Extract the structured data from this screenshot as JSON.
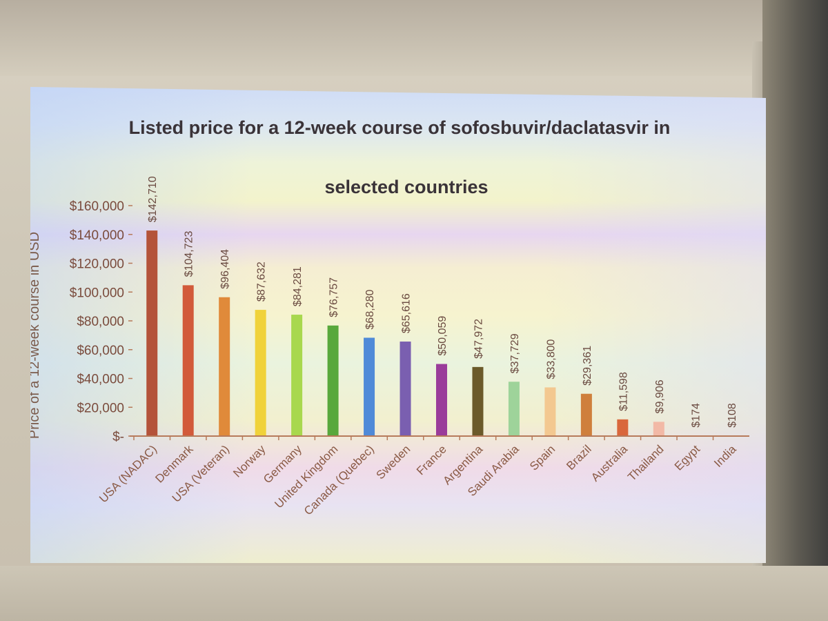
{
  "chart_data": {
    "type": "bar",
    "title": "Listed price for a 12-week course of sofosbuvir/daclatasvir in selected countries",
    "title_lines": [
      "Listed price for a 12-week course of sofosbuvir/daclatasvir in",
      "selected countries"
    ],
    "ylabel": "Price of a 12-week course in USD",
    "xlabel": "",
    "ylim": [
      0,
      160000
    ],
    "yticks": [
      "$-",
      "$20,000",
      "$40,000",
      "$60,000",
      "$80,000",
      "$100,000",
      "$120,000",
      "$140,000",
      "$160,000"
    ],
    "categories": [
      "USA (NADAC)",
      "Denmark",
      "USA (Veteran)",
      "Norway",
      "Germany",
      "United Kingdom",
      "Canada (Quebec)",
      "Sweden",
      "France",
      "Argentina",
      "Saudi Arabia",
      "Spain",
      "Brazil",
      "Australia",
      "Thailand",
      "Egypt",
      "India"
    ],
    "values": [
      142710,
      104723,
      96404,
      87632,
      84281,
      76757,
      68280,
      65616,
      50059,
      47972,
      37729,
      33800,
      29361,
      11598,
      9906,
      174,
      108
    ],
    "data_labels": [
      "$142,710",
      "$104,723",
      "$96,404",
      "$87,632",
      "$84,281",
      "$76,757",
      "$68,280",
      "$65,616",
      "$50,059",
      "$47,972",
      "$37,729",
      "$33,800",
      "$29,361",
      "$11,598",
      "$9,906",
      "$174",
      "$108"
    ],
    "colors": [
      "#b4533a",
      "#d25a3a",
      "#e08a3a",
      "#f0d23a",
      "#a8d84e",
      "#58a83c",
      "#4f8ad8",
      "#7a5fb0",
      "#9a3c9a",
      "#6b5a2a",
      "#9ed39a",
      "#f3c890",
      "#cf7f3c",
      "#d9673c",
      "#f2b9a6",
      "#e0d6c8",
      "#e0d6c8"
    ],
    "grid": false,
    "legend": "none"
  }
}
